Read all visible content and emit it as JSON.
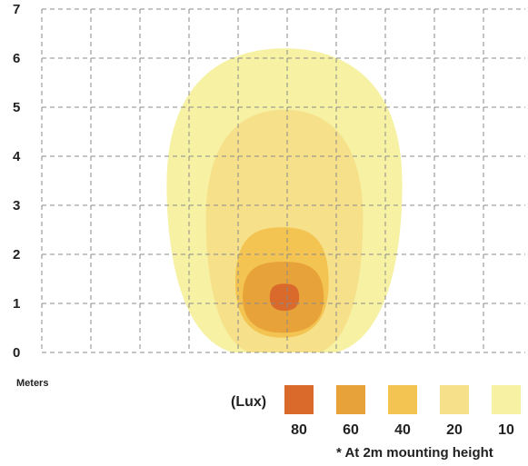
{
  "chart_data": {
    "type": "heatmap",
    "title": "",
    "xlabel": "",
    "ylabel": "Meters",
    "ylim": [
      0,
      7
    ],
    "grid": true,
    "y_ticks": [
      "0",
      "1",
      "2",
      "3",
      "4",
      "5",
      "6",
      "7"
    ],
    "legend_title": "(Lux)",
    "legend_placement": "bottom-right",
    "levels": [
      {
        "label": "80",
        "color": "#d96a2c"
      },
      {
        "label": "60",
        "color": "#e8a23a"
      },
      {
        "label": "40",
        "color": "#f3c451"
      },
      {
        "label": "20",
        "color": "#f6e08a"
      },
      {
        "label": "10",
        "color": "#f6f1a3"
      }
    ],
    "isolux_contours": [
      {
        "lux": 10,
        "x_range": [
          -2.4,
          2.4
        ],
        "y_range": [
          0,
          6.2
        ]
      },
      {
        "lux": 20,
        "x_range": [
          -1.6,
          1.6
        ],
        "y_range": [
          0,
          4.95
        ]
      },
      {
        "lux": 40,
        "x_range": [
          -1.0,
          0.9
        ],
        "y_range": [
          0.3,
          2.55
        ]
      },
      {
        "lux": 60,
        "x_range": [
          -0.85,
          0.8
        ],
        "y_range": [
          0.4,
          1.85
        ]
      },
      {
        "lux": 80,
        "x_range": [
          -0.3,
          0.3
        ],
        "y_range": [
          0.85,
          1.4
        ]
      }
    ],
    "note": "* At 2m mounting height"
  }
}
